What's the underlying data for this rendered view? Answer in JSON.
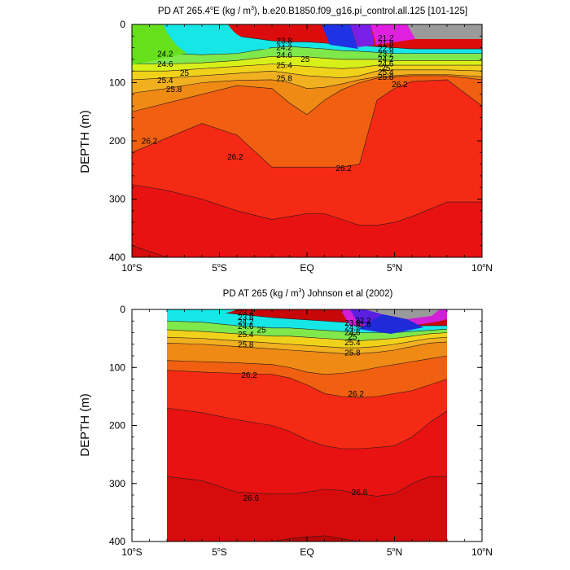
{
  "chart_data": [
    {
      "type": "contour",
      "title": "PD AT 265.4°E (kg / m³), b.e20.B1850.f09_g16.pi_control.all.125 [101-125]",
      "title_parts": {
        "main": "PD AT 265.4",
        "deg": "o",
        "after_deg": "E (kg / m",
        "sup": "3",
        "rest": "), b.e20.B1850.f09_g16.pi_control.all.125 [101-125]"
      },
      "ylabel": "DEPTH (m)",
      "xlabel": "",
      "xlim": [
        -10,
        10
      ],
      "ylim": [
        400,
        0
      ],
      "y_ticks": [
        "0",
        "100",
        "200",
        "300",
        "400"
      ],
      "x_ticks": [
        {
          "value": -10,
          "num": "10",
          "deg": "o",
          "hemi": "S"
        },
        {
          "value": -5,
          "num": "5",
          "deg": "o",
          "hemi": "S"
        },
        {
          "value": 0,
          "num": "EQ",
          "deg": "",
          "hemi": ""
        },
        {
          "value": 5,
          "num": "5",
          "deg": "o",
          "hemi": "N"
        },
        {
          "value": 10,
          "num": "10",
          "deg": "o",
          "hemi": "N"
        }
      ],
      "data_x_range": [
        -10,
        10
      ],
      "contour_levels": [
        20.8,
        21.2,
        21.6,
        22.0,
        22.4,
        22.8,
        23.0,
        23.2,
        23.4,
        23.6,
        23.8,
        24.0,
        24.2,
        24.4,
        24.6,
        24.8,
        25.0,
        25.2,
        25.4,
        25.6,
        25.8,
        26.0,
        26.2,
        26.4,
        26.6,
        26.8
      ],
      "isopycnal_depths": {
        "x": [
          -10,
          -8,
          -6,
          -4,
          -2,
          -1,
          0,
          1,
          2,
          3,
          4,
          5,
          6,
          8,
          10
        ],
        "lines": [
          {
            "level": 23.8,
            "depths": [
              2,
              5,
              10,
              20,
              28,
              30,
              30,
              32,
              35,
              36,
              38,
              40,
              42,
              42,
              42
            ]
          },
          {
            "level": 24.2,
            "depths": [
              45,
              50,
              52,
              50,
              40,
              38,
              40,
              42,
              45,
              46,
              48,
              50,
              50,
              50,
              50
            ]
          },
          {
            "level": 24.6,
            "depths": [
              68,
              68,
              66,
              62,
              55,
              55,
              56,
              58,
              60,
              60,
              60,
              62,
              62,
              62,
              62
            ]
          },
          {
            "level": 25.0,
            "depths": [
              80,
              80,
              76,
              72,
              68,
              70,
              72,
              74,
              76,
              74,
              70,
              70,
              70,
              70,
              70
            ]
          },
          {
            "level": 25.4,
            "depths": [
              95,
              92,
              88,
              84,
              80,
              84,
              88,
              90,
              92,
              88,
              80,
              78,
              78,
              78,
              80
            ]
          },
          {
            "level": 25.8,
            "depths": [
              118,
              110,
              100,
              96,
              95,
              100,
              110,
              108,
              102,
              95,
              90,
              88,
              86,
              86,
              90
            ]
          },
          {
            "level": 26.0,
            "depths": [
              150,
              135,
              120,
              105,
              110,
              135,
              155,
              130,
              112,
              100,
              92,
              90,
              88,
              88,
              95
            ]
          },
          {
            "level": 26.2,
            "depths": [
              220,
              195,
              170,
              190,
              245,
              245,
              245,
              245,
              245,
              240,
              130,
              110,
              98,
              95,
              140
            ]
          },
          {
            "level": 26.4,
            "depths": [
              275,
              285,
              300,
              320,
              335,
              330,
              325,
              325,
              335,
              345,
              345,
              340,
              330,
              305,
              305
            ]
          },
          {
            "level": 26.6,
            "depths": [
              380,
              400,
              400,
              400,
              400,
              400,
              400,
              400,
              400,
              400,
              400,
              400,
              400,
              400,
              400
            ]
          }
        ]
      },
      "contour_labels": [
        {
          "text": "23.8",
          "x": -1.3,
          "depth": 33
        },
        {
          "text": "24.2",
          "x": -8.1,
          "depth": 55
        },
        {
          "text": "24.2",
          "x": -1.3,
          "depth": 44
        },
        {
          "text": "24.6",
          "x": -8.1,
          "depth": 73
        },
        {
          "text": "24.6",
          "x": -1.3,
          "depth": 57
        },
        {
          "text": "25",
          "x": -7.0,
          "depth": 88
        },
        {
          "text": "25",
          "x": -0.1,
          "depth": 64
        },
        {
          "text": "25.4",
          "x": -8.1,
          "depth": 101
        },
        {
          "text": "25.4",
          "x": -1.3,
          "depth": 75
        },
        {
          "text": "25.8",
          "x": -7.6,
          "depth": 116
        },
        {
          "text": "25.8",
          "x": -1.3,
          "depth": 97
        },
        {
          "text": "26.2",
          "x": -9.0,
          "depth": 205
        },
        {
          "text": "26.2",
          "x": -4.1,
          "depth": 232
        },
        {
          "text": "26.2",
          "x": 2.1,
          "depth": 252
        },
        {
          "text": "26.2",
          "x": 5.3,
          "depth": 108
        },
        {
          "text": "21.2",
          "x": 4.5,
          "depth": 28
        },
        {
          "text": "21.8",
          "x": 4.5,
          "depth": 37
        },
        {
          "text": "22.6",
          "x": 4.5,
          "depth": 46
        },
        {
          "text": "23.2",
          "x": 4.5,
          "depth": 55
        },
        {
          "text": "24.2",
          "x": 4.5,
          "depth": 64
        },
        {
          "text": "24.6",
          "x": 4.5,
          "depth": 72
        },
        {
          "text": "25",
          "x": 4.5,
          "depth": 80
        },
        {
          "text": "25.4",
          "x": 4.5,
          "depth": 87
        },
        {
          "text": "25.8",
          "x": 4.5,
          "depth": 95
        }
      ]
    },
    {
      "type": "contour",
      "title": "PD AT 265 (kg / m³) Johnson et al (2002)",
      "title_parts": {
        "main": "PD AT 265 (kg / m",
        "deg": "",
        "after_deg": "",
        "sup": "3",
        "rest": ") Johnson et al (2002)"
      },
      "ylabel": "DEPTH (m)",
      "xlabel": "",
      "xlim": [
        -10,
        10
      ],
      "ylim": [
        400,
        0
      ],
      "y_ticks": [
        "0",
        "100",
        "200",
        "300",
        "400"
      ],
      "x_ticks": [
        {
          "value": -10,
          "num": "10",
          "deg": "o",
          "hemi": "S"
        },
        {
          "value": -5,
          "num": "5",
          "deg": "o",
          "hemi": "S"
        },
        {
          "value": 0,
          "num": "EQ",
          "deg": "",
          "hemi": ""
        },
        {
          "value": 5,
          "num": "5",
          "deg": "o",
          "hemi": "N"
        },
        {
          "value": 10,
          "num": "10",
          "deg": "o",
          "hemi": "N"
        }
      ],
      "data_x_range": [
        -8,
        8
      ],
      "contour_levels": [
        20.8,
        21.2,
        21.6,
        22.0,
        22.4,
        22.8,
        23.0,
        23.2,
        23.4,
        23.6,
        23.8,
        24.0,
        24.2,
        24.4,
        24.6,
        24.8,
        25.0,
        25.2,
        25.4,
        25.6,
        25.8,
        26.0,
        26.2,
        26.4,
        26.6,
        26.8
      ],
      "isopycnal_depths": {
        "x": [
          -8,
          -6,
          -4,
          -2,
          -1,
          0,
          1,
          2,
          3,
          4,
          5,
          6,
          7,
          8
        ],
        "lines": [
          {
            "level": 23.4,
            "depths": [
              0,
              2,
              8,
              14,
              16,
              18,
              20,
              22,
              24,
              26,
              28,
              28,
              28,
              28
            ]
          },
          {
            "level": 24.2,
            "depths": [
              20,
              22,
              28,
              32,
              32,
              34,
              36,
              38,
              40,
              40,
              40,
              38,
              36,
              34
            ]
          },
          {
            "level": 25.0,
            "depths": [
              35,
              38,
              42,
              46,
              46,
              48,
              50,
              52,
              54,
              52,
              50,
              46,
              42,
              40
            ]
          },
          {
            "level": 25.4,
            "depths": [
              48,
              50,
              54,
              58,
              60,
              62,
              64,
              66,
              66,
              64,
              60,
              55,
              50,
              48
            ]
          },
          {
            "level": 25.8,
            "depths": [
              58,
              60,
              64,
              68,
              70,
              72,
              74,
              76,
              76,
              74,
              70,
              64,
              58,
              56
            ]
          },
          {
            "level": 26.0,
            "depths": [
              88,
              90,
              92,
              95,
              100,
              108,
              112,
              110,
              106,
              100,
              95,
              90,
              85,
              80
            ]
          },
          {
            "level": 26.2,
            "depths": [
              105,
              108,
              110,
              112,
              118,
              130,
              145,
              150,
              152,
              150,
              145,
              140,
              130,
              120
            ]
          },
          {
            "level": 26.4,
            "depths": [
              170,
              178,
              190,
              200,
              210,
              225,
              235,
              240,
              240,
              238,
              235,
              220,
              195,
              175
            ]
          },
          {
            "level": 26.6,
            "depths": [
              288,
              295,
              315,
              318,
              318,
              315,
              310,
              312,
              318,
              322,
              318,
              300,
              288,
              288
            ]
          },
          {
            "level": 26.8,
            "depths": [
              400,
              400,
              400,
              400,
              395,
              392,
              390,
              395,
              400,
              400,
              400,
              400,
              400,
              400
            ]
          }
        ]
      },
      "contour_labels": [
        {
          "text": "23.4",
          "x": -3.5,
          "depth": 10
        },
        {
          "text": "23.8",
          "x": -3.5,
          "depth": 18
        },
        {
          "text": "24.2",
          "x": -3.5,
          "depth": 26
        },
        {
          "text": "24.6",
          "x": -3.5,
          "depth": 34
        },
        {
          "text": "25",
          "x": -2.6,
          "depth": 40
        },
        {
          "text": "25.4",
          "x": -3.5,
          "depth": 48
        },
        {
          "text": "25.8",
          "x": -3.5,
          "depth": 65
        },
        {
          "text": "26.2",
          "x": -3.3,
          "depth": 118
        },
        {
          "text": "26.2",
          "x": 2.8,
          "depth": 150
        },
        {
          "text": "26.6",
          "x": -3.2,
          "depth": 330
        },
        {
          "text": "26.6",
          "x": 3.0,
          "depth": 320
        },
        {
          "text": "24.2",
          "x": 2.6,
          "depth": 36
        },
        {
          "text": "24.6",
          "x": 2.6,
          "depth": 44
        },
        {
          "text": "25",
          "x": 2.6,
          "depth": 52
        },
        {
          "text": "25.4",
          "x": 2.6,
          "depth": 62
        },
        {
          "text": "25.8",
          "x": 2.6,
          "depth": 79
        },
        {
          "text": "22.2",
          "x": 3.2,
          "depth": 24
        },
        {
          "text": "22.6",
          "x": 3.2,
          "depth": 30
        },
        {
          "text": "23.8",
          "x": 2.6,
          "depth": 28
        }
      ]
    }
  ]
}
